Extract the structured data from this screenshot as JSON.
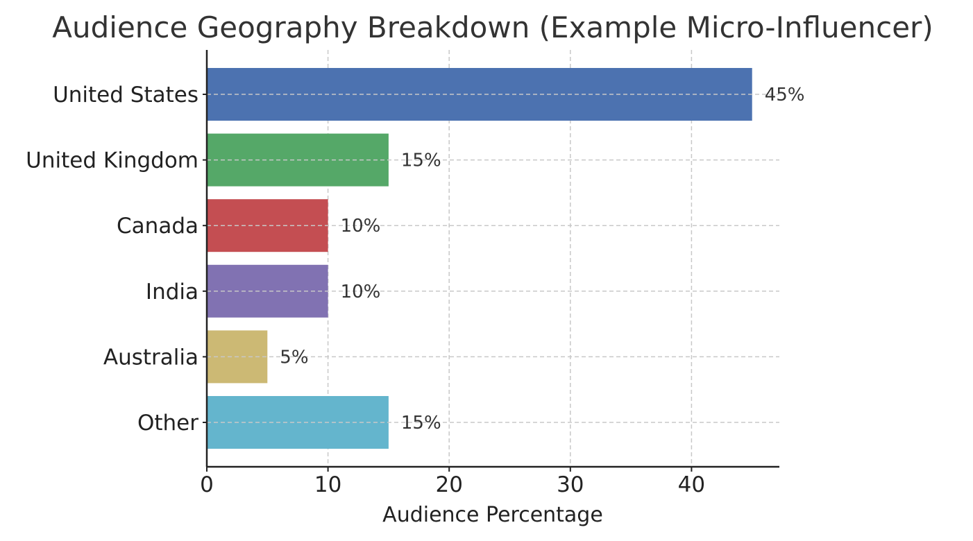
{
  "chart_data": {
    "type": "bar",
    "orientation": "horizontal",
    "title": "Audience Geography Breakdown (Example Micro-Influencer)",
    "xlabel": "Audience Percentage",
    "ylabel": "",
    "categories": [
      "United States",
      "United Kingdom",
      "Canada",
      "India",
      "Australia",
      "Other"
    ],
    "values": [
      45,
      15,
      10,
      10,
      5,
      15
    ],
    "data_labels": [
      "45%",
      "15%",
      "10%",
      "10%",
      "5%",
      "15%"
    ],
    "colors": [
      "#4c72b0",
      "#55a868",
      "#c44e52",
      "#8172b2",
      "#ccb974",
      "#64b5cd"
    ],
    "xlim": [
      0,
      47.25
    ],
    "xticks": [
      0,
      10,
      20,
      30,
      40
    ],
    "xtick_labels": [
      "0",
      "10",
      "20",
      "30",
      "40"
    ],
    "grid": true,
    "legend": "none"
  }
}
